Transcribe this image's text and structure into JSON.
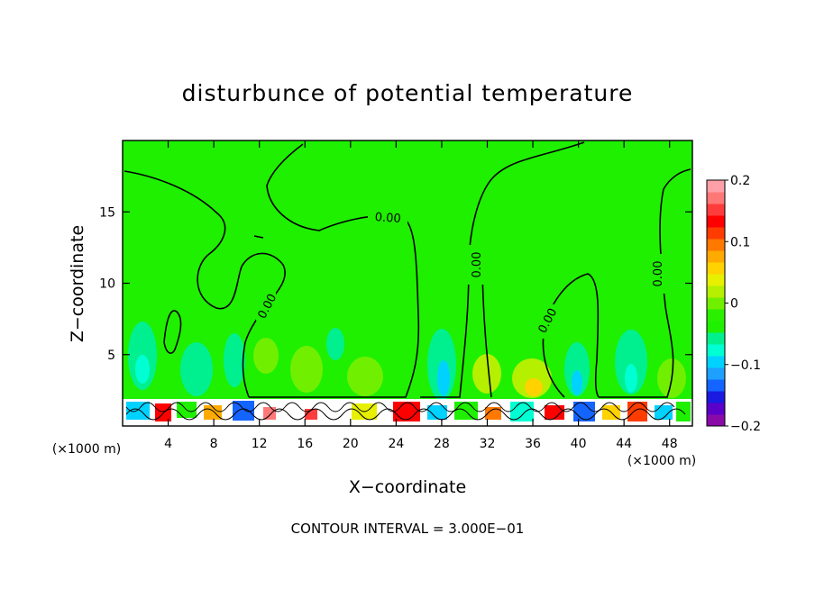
{
  "chart_data": {
    "type": "heatmap",
    "title": "disturbunce of potential temperature",
    "xlabel": "X−coordinate",
    "ylabel": "Z−coordinate",
    "x_unit": "(×1000 m)",
    "y_unit": "(×1000 m)",
    "xlim": [
      0,
      50
    ],
    "ylim": [
      0,
      20
    ],
    "x_ticks": [
      4,
      8,
      12,
      16,
      20,
      24,
      28,
      32,
      36,
      40,
      44,
      48
    ],
    "x_tick_labels": [
      "4",
      "8",
      "12",
      "16",
      "20",
      "24",
      "28",
      "32",
      "36",
      "40",
      "44",
      "48"
    ],
    "y_ticks": [
      5,
      10,
      15
    ],
    "y_tick_labels": [
      "5",
      "10",
      "15"
    ],
    "colorbar": {
      "range": [
        -0.2,
        0.2
      ],
      "ticks": [
        0.2,
        0.1,
        0,
        -0.1,
        -0.2
      ],
      "tick_labels": [
        "0.2",
        "0.1",
        "0",
        "−0.1",
        "−0.2"
      ],
      "colors": [
        "#8a0aa8",
        "#5a00c8",
        "#1a1ae0",
        "#1464ff",
        "#1ea0ff",
        "#00d2ff",
        "#00ffd2",
        "#00f090",
        "#1ef000",
        "#2af000",
        "#70f000",
        "#b4f000",
        "#e6f000",
        "#ffd200",
        "#ffaa00",
        "#ff7800",
        "#ff3c00",
        "#ff0000",
        "#ff3c3c",
        "#ff7878",
        "#ff9fa8"
      ]
    },
    "background_value": 0.0,
    "contour_labels": [
      "0.00",
      "0.00",
      "0.00",
      "0.00",
      "0.00"
    ],
    "contour_interval_text": "CONTOUR INTERVAL = 3.000E−01",
    "grid": false,
    "legend": "colorbar-right"
  }
}
